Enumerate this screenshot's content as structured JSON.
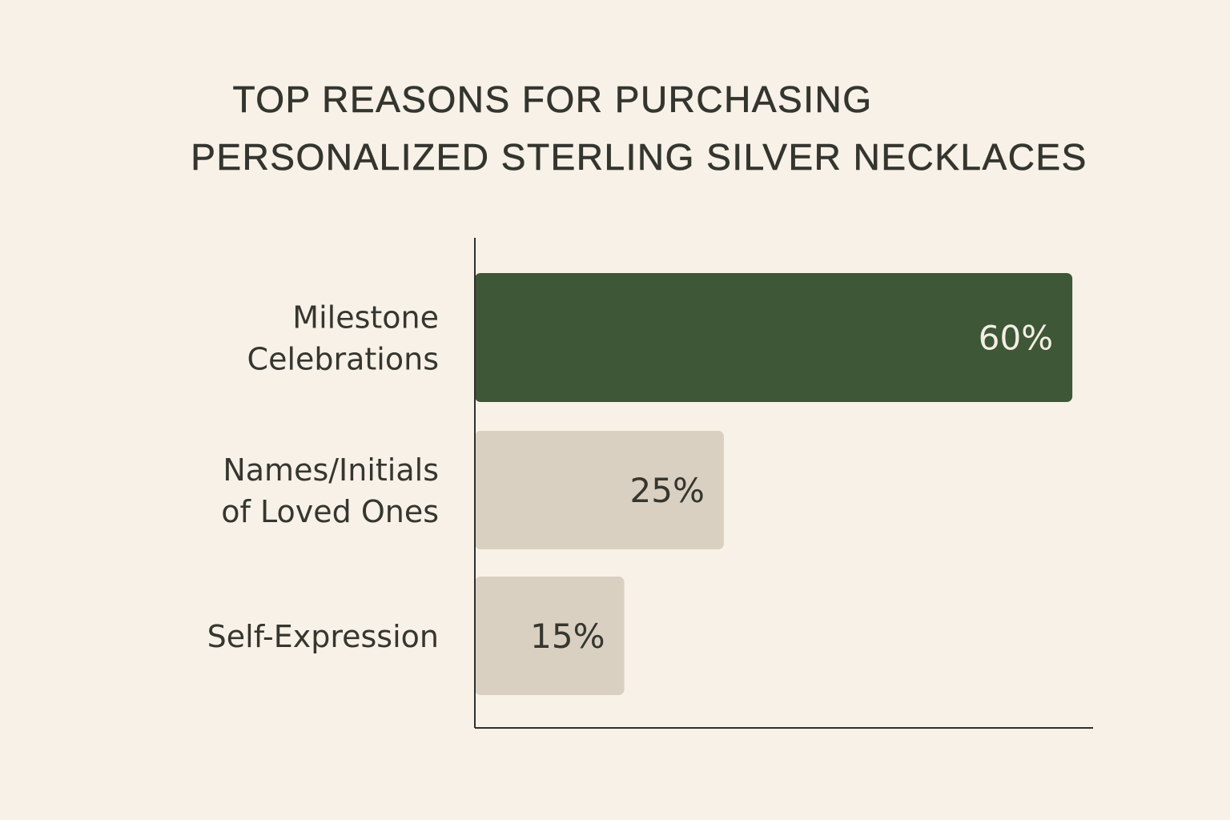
{
  "title": {
    "line1": "TOP REASONS FOR PURCHASING",
    "line2": "PERSONALIZED STERLING SILVER NECKLACES"
  },
  "colors": {
    "background": "#f7f1e7",
    "highlight_bar": "#3e5737",
    "muted_bar": "#d9d0c2",
    "text": "#35362f",
    "highlight_label": "#f3eee3",
    "axis": "#2f2f2f"
  },
  "chart_data": {
    "type": "bar",
    "orientation": "horizontal",
    "title": "TOP REASONS FOR PURCHASING PERSONALIZED STERLING SILVER NECKLACES",
    "categories": [
      [
        "Milestone",
        "Celebrations"
      ],
      [
        "Names/Initials",
        "of Loved Ones"
      ],
      [
        "Self-Expression"
      ]
    ],
    "values": [
      60,
      25,
      15
    ],
    "value_labels": [
      "60%",
      "25%",
      "15%"
    ],
    "highlight_index": 0,
    "xlim": [
      0,
      62
    ],
    "grid": false,
    "legend": "none"
  }
}
